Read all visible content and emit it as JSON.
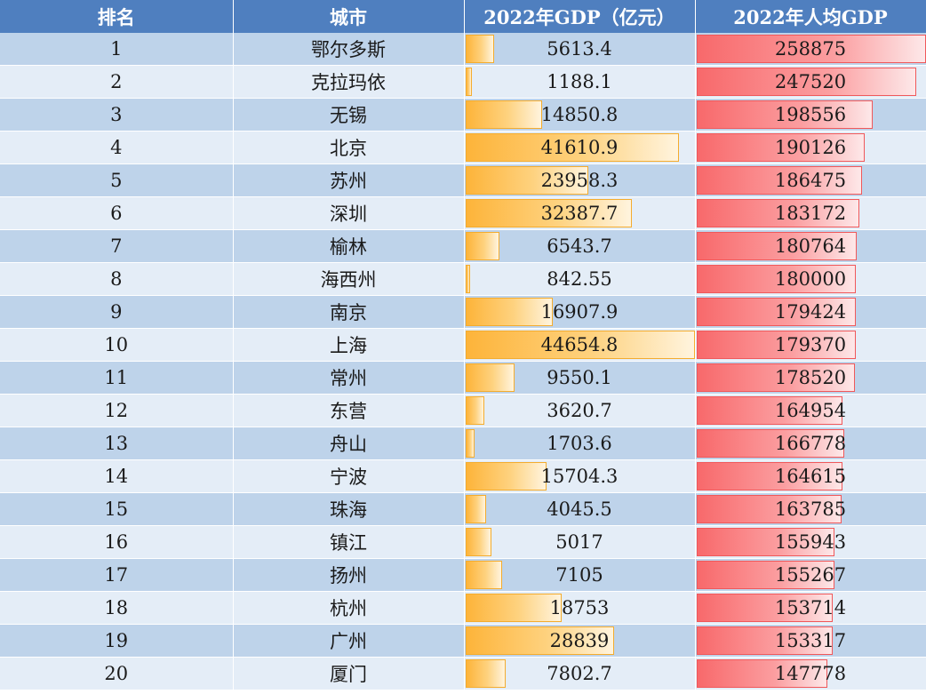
{
  "headers": {
    "rank": "排名",
    "city": "城市",
    "gdp": "2022年GDP（亿元）",
    "per_capita": "2022年人均GDP"
  },
  "colors": {
    "header_bg": "#4f7fbf",
    "row_dark": "#bed3ea",
    "row_light": "#e4edf7",
    "gdp_bar": "#fdb43a",
    "per_capita_bar": "#f8696b"
  },
  "chart_data": {
    "type": "table",
    "columns": [
      "排名",
      "城市",
      "2022年GDP（亿元）",
      "2022年人均GDP"
    ],
    "rows": [
      {
        "rank": "1",
        "city": "鄂尔多斯",
        "gdp": "5613.4",
        "per_capita": "258875"
      },
      {
        "rank": "2",
        "city": "克拉玛依",
        "gdp": "1188.1",
        "per_capita": "247520"
      },
      {
        "rank": "3",
        "city": "无锡",
        "gdp": "14850.8",
        "per_capita": "198556"
      },
      {
        "rank": "4",
        "city": "北京",
        "gdp": "41610.9",
        "per_capita": "190126"
      },
      {
        "rank": "5",
        "city": "苏州",
        "gdp": "23958.3",
        "per_capita": "186475"
      },
      {
        "rank": "6",
        "city": "深圳",
        "gdp": "32387.7",
        "per_capita": "183172"
      },
      {
        "rank": "7",
        "city": "榆林",
        "gdp": "6543.7",
        "per_capita": "180764"
      },
      {
        "rank": "8",
        "city": "海西州",
        "gdp": "842.55",
        "per_capita": "180000"
      },
      {
        "rank": "9",
        "city": "南京",
        "gdp": "16907.9",
        "per_capita": "179424"
      },
      {
        "rank": "10",
        "city": "上海",
        "gdp": "44654.8",
        "per_capita": "179370"
      },
      {
        "rank": "11",
        "city": "常州",
        "gdp": "9550.1",
        "per_capita": "178520"
      },
      {
        "rank": "12",
        "city": "东营",
        "gdp": "3620.7",
        "per_capita": "164954"
      },
      {
        "rank": "13",
        "city": "舟山",
        "gdp": "1703.6",
        "per_capita": "166778"
      },
      {
        "rank": "14",
        "city": "宁波",
        "gdp": "15704.3",
        "per_capita": "164615"
      },
      {
        "rank": "15",
        "city": "珠海",
        "gdp": "4045.5",
        "per_capita": "163785"
      },
      {
        "rank": "16",
        "city": "镇江",
        "gdp": "5017",
        "per_capita": "155943"
      },
      {
        "rank": "17",
        "city": "扬州",
        "gdp": "7105",
        "per_capita": "155267"
      },
      {
        "rank": "18",
        "city": "杭州",
        "gdp": "18753",
        "per_capita": "153714"
      },
      {
        "rank": "19",
        "city": "广州",
        "gdp": "28839",
        "per_capita": "153317"
      },
      {
        "rank": "20",
        "city": "厦门",
        "gdp": "7802.7",
        "per_capita": "147778"
      }
    ]
  }
}
